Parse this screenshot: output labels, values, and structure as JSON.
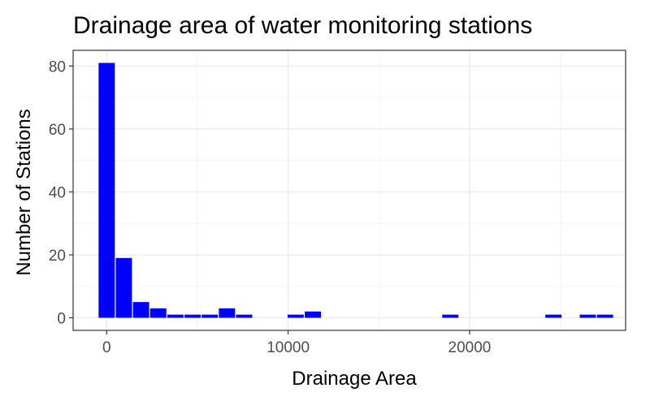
{
  "chart_data": {
    "type": "bar",
    "title": "Drainage area of water monitoring stations",
    "xlabel": "Drainage Area",
    "ylabel": "Number of Stations",
    "xlim": [
      -1850,
      28600
    ],
    "ylim": [
      -4,
      85
    ],
    "x_ticks": [
      0,
      10000,
      20000
    ],
    "x_tick_labels": [
      "0",
      "10000",
      "20000"
    ],
    "y_ticks": [
      0,
      20,
      40,
      60,
      80
    ],
    "y_tick_labels": [
      "0",
      "20",
      "40",
      "60",
      "80"
    ],
    "grid": true,
    "legend": "none",
    "bin_width": 947,
    "x": [
      0,
      947,
      1894,
      2841,
      3788,
      4735,
      5682,
      6629,
      7576,
      8523,
      9470,
      10417,
      11364,
      12311,
      13258,
      14205,
      15152,
      16099,
      17046,
      17993,
      18940,
      19887,
      20834,
      21781,
      22728,
      23675,
      24622,
      25569,
      26516,
      27463
    ],
    "values": [
      81,
      19,
      5,
      3,
      1,
      1,
      1,
      3,
      1,
      0,
      0,
      1,
      2,
      0,
      0,
      0,
      0,
      0,
      0,
      0,
      1,
      0,
      0,
      0,
      0,
      0,
      1,
      0,
      1,
      1
    ],
    "colors": {
      "bar": "#0000ff",
      "panel_border": "#333333",
      "grid_major": "#ebebeb",
      "grid_minor": "#f5f5f5",
      "tick_text": "#4d4d4d"
    }
  }
}
